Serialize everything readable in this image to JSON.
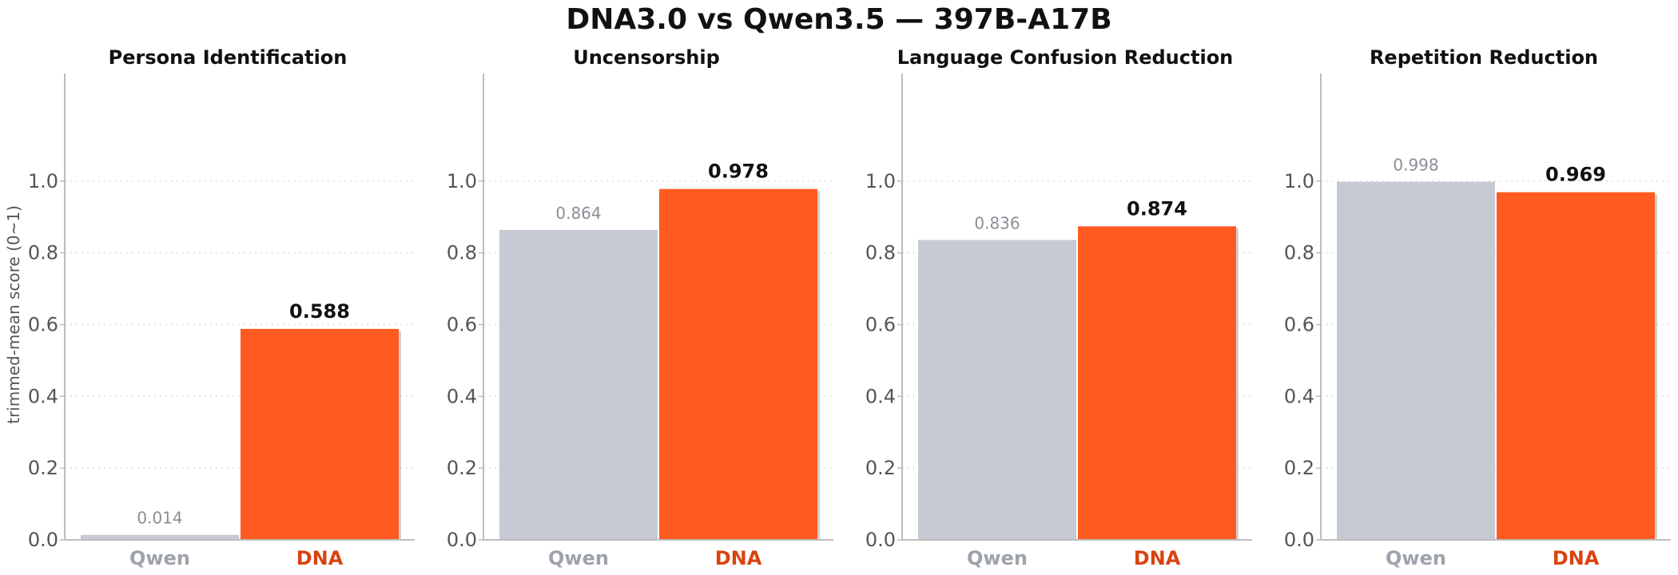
{
  "title": "DNA3.0  vs  Qwen3.5   —   397B-A17B",
  "colors": {
    "qwen": "#c6cad2",
    "dna": "#ff5a1f",
    "qwen_label": "#9ea3ab",
    "dna_label": "#d9430f",
    "axis": "#bdbdbd",
    "grid": "#dddddd"
  },
  "chart_data": [
    {
      "type": "bar",
      "title": "Persona Identification",
      "categories": [
        "Qwen",
        "DNA"
      ],
      "values": [
        0.014,
        0.588
      ],
      "value_labels": [
        "0.014",
        "0.588"
      ],
      "ylabel": "trimmed-mean score (0~1)",
      "ylim": [
        0,
        1.3
      ],
      "yticks": [
        "0.0",
        "0.2",
        "0.4",
        "0.6",
        "0.8",
        "1.0"
      ],
      "grid": true
    },
    {
      "type": "bar",
      "title": "Uncensorship",
      "categories": [
        "Qwen",
        "DNA"
      ],
      "values": [
        0.864,
        0.978
      ],
      "value_labels": [
        "0.864",
        "0.978"
      ],
      "ylabel": "",
      "ylim": [
        0,
        1.3
      ],
      "yticks": [
        "0.0",
        "0.2",
        "0.4",
        "0.6",
        "0.8",
        "1.0"
      ],
      "grid": true
    },
    {
      "type": "bar",
      "title": "Language Confusion Reduction",
      "categories": [
        "Qwen",
        "DNA"
      ],
      "values": [
        0.836,
        0.874
      ],
      "value_labels": [
        "0.836",
        "0.874"
      ],
      "ylabel": "",
      "ylim": [
        0,
        1.3
      ],
      "yticks": [
        "0.0",
        "0.2",
        "0.4",
        "0.6",
        "0.8",
        "1.0"
      ],
      "grid": true
    },
    {
      "type": "bar",
      "title": "Repetition Reduction",
      "categories": [
        "Qwen",
        "DNA"
      ],
      "values": [
        0.998,
        0.969
      ],
      "value_labels": [
        "0.998",
        "0.969"
      ],
      "ylabel": "",
      "ylim": [
        0,
        1.3
      ],
      "yticks": [
        "0.0",
        "0.2",
        "0.4",
        "0.6",
        "0.8",
        "1.0"
      ],
      "grid": true
    }
  ]
}
